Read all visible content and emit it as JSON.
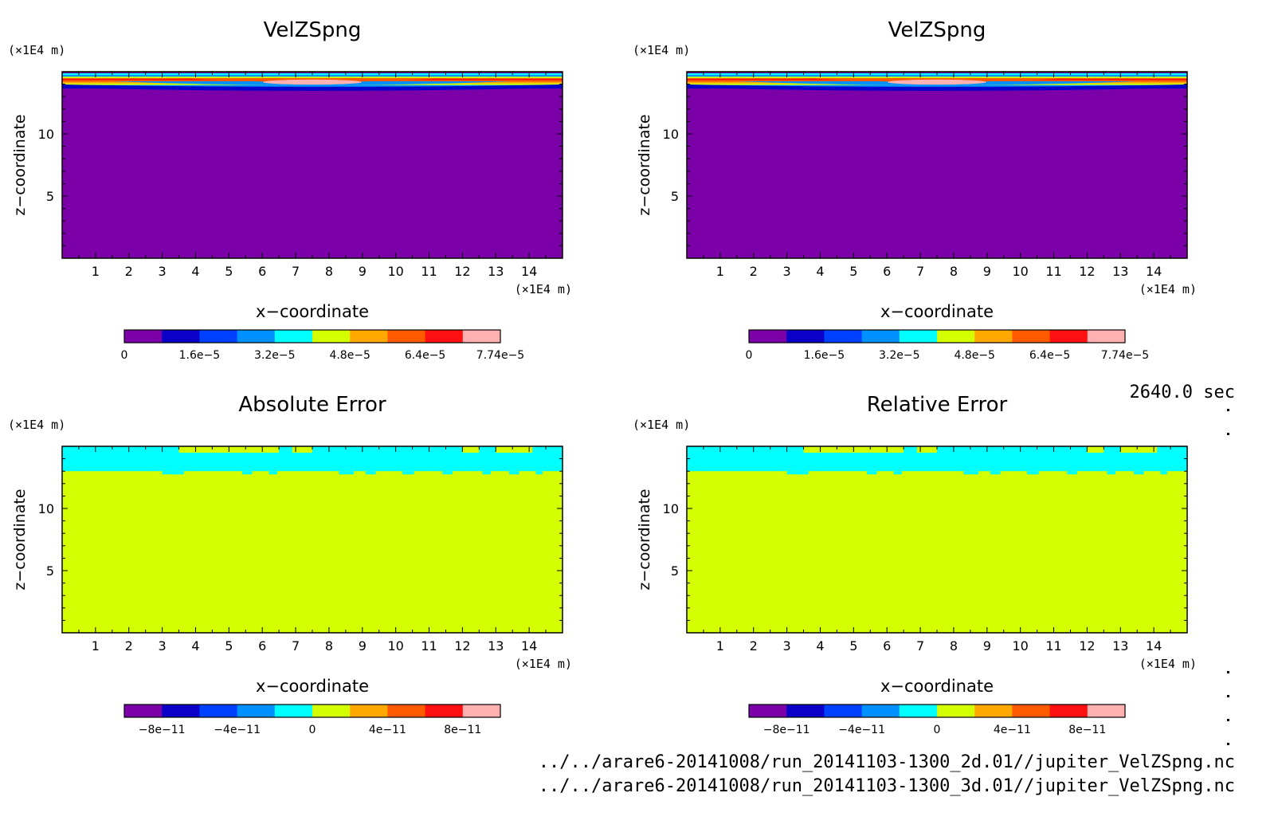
{
  "time_label": "2640.0 sec",
  "files": [
    "../../arare6-20141008/run_20141103-1300_2d.01//jupiter_VelZSpng.nc",
    "../../arare6-20141008/run_20141103-1300_3d.01//jupiter_VelZSpng.nc"
  ],
  "colors": {
    "velocity_levels": [
      "#7b00a8",
      "#0a00c8",
      "#0040ff",
      "#0090ff",
      "#00ffff",
      "#d4ff00",
      "#ffa800",
      "#ff5a00",
      "#ff1010",
      "#ffb0b0"
    ],
    "error_levels": [
      "#7b00a8",
      "#0a00c8",
      "#0040ff",
      "#0090ff",
      "#00ffff",
      "#d4ff00",
      "#ffa800",
      "#ff5a00",
      "#ff1010",
      "#ffb0b0"
    ]
  },
  "chart_data": [
    {
      "type": "heatmap",
      "title": "VelZSpng",
      "xlabel": "x−coordinate",
      "ylabel": "z−coordinate",
      "x_unit": "(×1E4 m)",
      "y_unit": "(×1E4 m)",
      "xlim": [
        0,
        15
      ],
      "ylim": [
        0,
        15
      ],
      "x_ticks": [
        "1",
        "2",
        "3",
        "4",
        "5",
        "6",
        "7",
        "8",
        "9",
        "10",
        "11",
        "12",
        "13",
        "14"
      ],
      "y_ticks": [
        "5",
        "10"
      ],
      "colorbar": {
        "min": 0,
        "max": 7.74e-05,
        "labels": [
          "0",
          "1.6e−5",
          "3.2e−5",
          "4.8e−5",
          "6.4e−5",
          "7.74e−5"
        ],
        "label_levels": [
          0,
          2,
          4,
          6,
          8,
          10
        ]
      },
      "field": {
        "background_level": 0,
        "bands_from_top": [
          4,
          3,
          5,
          8,
          7,
          6,
          5,
          3,
          1
        ],
        "max_center_x": 7.5,
        "max_level": 9
      }
    },
    {
      "type": "heatmap",
      "title": "VelZSpng",
      "xlabel": "x−coordinate",
      "ylabel": "z−coordinate",
      "x_unit": "(×1E4 m)",
      "y_unit": "(×1E4 m)",
      "xlim": [
        0,
        15
      ],
      "ylim": [
        0,
        15
      ],
      "x_ticks": [
        "1",
        "2",
        "3",
        "4",
        "5",
        "6",
        "7",
        "8",
        "9",
        "10",
        "11",
        "12",
        "13",
        "14"
      ],
      "y_ticks": [
        "5",
        "10"
      ],
      "colorbar": {
        "min": 0,
        "max": 7.74e-05,
        "labels": [
          "0",
          "1.6e−5",
          "3.2e−5",
          "4.8e−5",
          "6.4e−5",
          "7.74e−5"
        ],
        "label_levels": [
          0,
          2,
          4,
          6,
          8,
          10
        ]
      },
      "field": {
        "background_level": 0,
        "bands_from_top": [
          4,
          3,
          5,
          8,
          7,
          6,
          5,
          3,
          1
        ],
        "max_center_x": 7.5,
        "max_level": 9
      }
    },
    {
      "type": "heatmap",
      "title": "Absolute Error",
      "xlabel": "x−coordinate",
      "ylabel": "z−coordinate",
      "x_unit": "(×1E4 m)",
      "y_unit": "(×1E4 m)",
      "xlim": [
        0,
        15
      ],
      "ylim": [
        0,
        15
      ],
      "x_ticks": [
        "1",
        "2",
        "3",
        "4",
        "5",
        "6",
        "7",
        "8",
        "9",
        "10",
        "11",
        "12",
        "13",
        "14"
      ],
      "y_ticks": [
        "5",
        "10"
      ],
      "colorbar": {
        "min": -1e-10,
        "max": 1e-10,
        "labels": [
          "−8e−11",
          "−4e−11",
          "0",
          "4e−11",
          "8e−11"
        ],
        "label_levels": [
          1,
          3,
          5,
          7,
          9
        ]
      },
      "field": {
        "background_level": 5,
        "top_level": 4,
        "top_band_z": [
          13.0,
          15.0
        ]
      }
    },
    {
      "type": "heatmap",
      "title": "Relative Error",
      "xlabel": "x−coordinate",
      "ylabel": "z−coordinate",
      "x_unit": "(×1E4 m)",
      "y_unit": "(×1E4 m)",
      "xlim": [
        0,
        15
      ],
      "ylim": [
        0,
        15
      ],
      "x_ticks": [
        "1",
        "2",
        "3",
        "4",
        "5",
        "6",
        "7",
        "8",
        "9",
        "10",
        "11",
        "12",
        "13",
        "14"
      ],
      "y_ticks": [
        "5",
        "10"
      ],
      "colorbar": {
        "min": -1e-10,
        "max": 1e-10,
        "labels": [
          "−8e−11",
          "−4e−11",
          "0",
          "4e−11",
          "8e−11"
        ],
        "label_levels": [
          1,
          3,
          5,
          7,
          9
        ]
      },
      "field": {
        "background_level": 5,
        "top_level": 4,
        "top_band_z": [
          13.0,
          15.0
        ]
      }
    }
  ]
}
